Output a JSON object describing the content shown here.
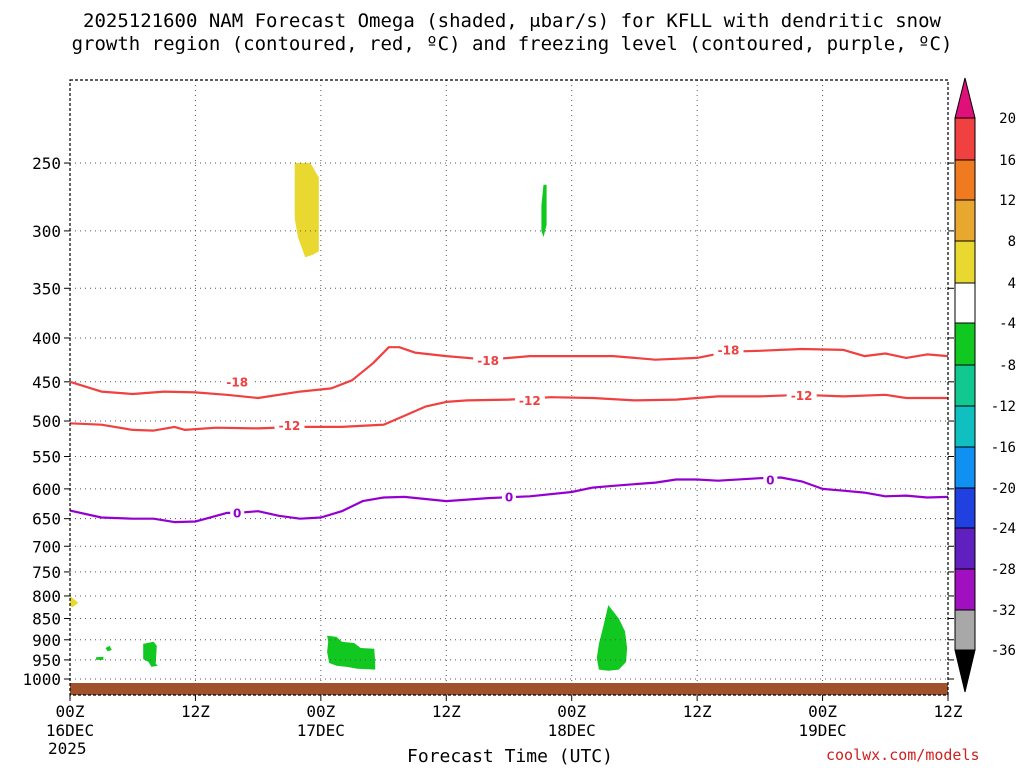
{
  "chart_data": {
    "type": "time-height cross section (shaded + contours)",
    "title_line1": "2025121600 NAM Forecast Omega (shaded, μbar/s) for KFLL with dendritic snow",
    "title_line2": "growth region (contoured, red, ºC) and freezing level (contoured, purple, ºC)",
    "xlabel": "Forecast Time (UTC)",
    "credit": "coolwx.com/models",
    "x_range_hours": [
      0,
      84
    ],
    "y_range_hpa": [
      1000,
      200
    ],
    "x_ticks": [
      {
        "hour": 0,
        "label": "00Z",
        "sub": "16DEC",
        "sub2": "2025"
      },
      {
        "hour": 12,
        "label": "12Z"
      },
      {
        "hour": 24,
        "label": "00Z",
        "sub": "17DEC"
      },
      {
        "hour": 36,
        "label": "12Z"
      },
      {
        "hour": 48,
        "label": "00Z",
        "sub": "18DEC"
      },
      {
        "hour": 60,
        "label": "12Z"
      },
      {
        "hour": 72,
        "label": "00Z",
        "sub": "19DEC"
      },
      {
        "hour": 84,
        "label": "12Z"
      }
    ],
    "y_ticks": [
      250,
      300,
      350,
      400,
      450,
      500,
      550,
      600,
      650,
      700,
      750,
      800,
      850,
      900,
      950,
      1000
    ],
    "colorbar": {
      "labels": [
        "20",
        "16",
        "12",
        "8",
        "4",
        "-4",
        "-8",
        "-12",
        "-16",
        "-20",
        "-24",
        "-28",
        "-32",
        "-36"
      ],
      "colors": [
        "#e8b4d0",
        "#f04040",
        "#f07a20",
        "#e8a830",
        "#e8d830",
        "#ffffff",
        "#10c820",
        "#10c890",
        "#10c0c0",
        "#1090f0",
        "#2040e0",
        "#6020c0",
        "#a010c0",
        "#a8a8a8"
      ],
      "top_arrow_color": "#e0107a",
      "bottom_arrow_color": "#000000"
    },
    "contours": [
      {
        "name": "-18C",
        "color": "#f04040",
        "label": "-18",
        "label_points": [
          [
            16,
            450
          ],
          [
            40,
            425
          ],
          [
            63,
            413
          ]
        ],
        "points": [
          [
            0,
            450
          ],
          [
            3,
            462
          ],
          [
            6,
            465
          ],
          [
            9,
            462
          ],
          [
            12,
            463
          ],
          [
            15,
            466
          ],
          [
            18,
            470
          ],
          [
            22,
            462
          ],
          [
            25,
            458
          ],
          [
            27,
            448
          ],
          [
            29,
            428
          ],
          [
            30.5,
            410
          ],
          [
            31.5,
            410
          ],
          [
            33,
            416
          ],
          [
            36,
            420
          ],
          [
            40,
            424
          ],
          [
            44,
            420
          ],
          [
            48,
            420
          ],
          [
            52,
            420
          ],
          [
            56,
            424
          ],
          [
            60,
            422
          ],
          [
            63,
            415
          ],
          [
            66,
            414
          ],
          [
            70,
            412
          ],
          [
            74,
            413
          ],
          [
            76,
            420
          ],
          [
            78,
            417
          ],
          [
            80,
            422
          ],
          [
            82,
            418
          ],
          [
            84,
            420
          ]
        ]
      },
      {
        "name": "-12C",
        "color": "#f04040",
        "label": "-12",
        "label_points": [
          [
            21,
            506
          ],
          [
            44,
            473
          ],
          [
            70,
            467
          ]
        ],
        "points": [
          [
            0,
            503
          ],
          [
            3,
            505
          ],
          [
            6,
            512
          ],
          [
            8,
            513
          ],
          [
            10,
            508
          ],
          [
            11,
            512
          ],
          [
            14,
            509
          ],
          [
            18,
            510
          ],
          [
            22,
            508
          ],
          [
            26,
            508
          ],
          [
            30,
            505
          ],
          [
            32,
            493
          ],
          [
            34,
            481
          ],
          [
            36,
            475
          ],
          [
            38,
            473
          ],
          [
            42,
            472
          ],
          [
            46,
            469
          ],
          [
            50,
            470
          ],
          [
            54,
            473
          ],
          [
            58,
            472
          ],
          [
            62,
            468
          ],
          [
            66,
            468
          ],
          [
            70,
            466
          ],
          [
            74,
            468
          ],
          [
            78,
            466
          ],
          [
            80,
            470
          ],
          [
            82,
            470
          ],
          [
            84,
            470
          ]
        ]
      },
      {
        "name": "0C",
        "color": "#9400d0",
        "label": "0",
        "label_points": [
          [
            16,
            640
          ],
          [
            42,
            613
          ],
          [
            67,
            586
          ]
        ],
        "points": [
          [
            0,
            636
          ],
          [
            3,
            648
          ],
          [
            6,
            650
          ],
          [
            8,
            650
          ],
          [
            10,
            656
          ],
          [
            12,
            655
          ],
          [
            13,
            650
          ],
          [
            15,
            640
          ],
          [
            16,
            640
          ],
          [
            18,
            637
          ],
          [
            20,
            645
          ],
          [
            22,
            650
          ],
          [
            24,
            648
          ],
          [
            26,
            637
          ],
          [
            28,
            620
          ],
          [
            30,
            614
          ],
          [
            32,
            613
          ],
          [
            36,
            620
          ],
          [
            40,
            615
          ],
          [
            44,
            612
          ],
          [
            48,
            605
          ],
          [
            50,
            598
          ],
          [
            52,
            595
          ],
          [
            56,
            590
          ],
          [
            58,
            585
          ],
          [
            60,
            585
          ],
          [
            62,
            587
          ],
          [
            66,
            583
          ],
          [
            68,
            582
          ],
          [
            70,
            588
          ],
          [
            72,
            600
          ],
          [
            74,
            603
          ],
          [
            76,
            606
          ],
          [
            78,
            612
          ],
          [
            80,
            611
          ],
          [
            82,
            614
          ],
          [
            84,
            613
          ]
        ]
      }
    ],
    "shaded_regions": [
      {
        "name": "omega +4..8",
        "color": "#e8d830",
        "points": [
          [
            21.5,
            250
          ],
          [
            23,
            250
          ],
          [
            23.8,
            260
          ],
          [
            23.8,
            317
          ],
          [
            23.2,
            320
          ],
          [
            22.5,
            322
          ],
          [
            21.8,
            305
          ],
          [
            21.5,
            290
          ]
        ]
      },
      {
        "name": "omega -4..-8",
        "color": "#10c820",
        "points": [
          [
            45.3,
            265
          ],
          [
            45.6,
            265
          ],
          [
            45.6,
            295
          ],
          [
            45.3,
            305
          ],
          [
            45.1,
            300
          ],
          [
            45.1,
            280
          ]
        ]
      },
      {
        "name": "omega +4..8 edge",
        "color": "#e8d830",
        "points": [
          [
            0,
            800
          ],
          [
            0.8,
            815
          ],
          [
            0.2,
            825
          ],
          [
            0,
            820
          ]
        ]
      },
      {
        "name": "omega -4..-8",
        "color": "#10c820",
        "points": [
          [
            3.4,
            920
          ],
          [
            3.8,
            915
          ],
          [
            4,
            925
          ],
          [
            3.6,
            928
          ]
        ]
      },
      {
        "name": "omega -4..-8",
        "color": "#10c820",
        "points": [
          [
            2.5,
            943
          ],
          [
            3.2,
            942
          ],
          [
            3.2,
            950
          ],
          [
            2.5,
            950
          ]
        ]
      },
      {
        "name": "omega -4..-8",
        "color": "#10c820",
        "points": [
          [
            7,
            910
          ],
          [
            8,
            905
          ],
          [
            8.3,
            915
          ],
          [
            8.2,
            960
          ],
          [
            8.4,
            965
          ],
          [
            7.8,
            968
          ],
          [
            7.5,
            955
          ],
          [
            7,
            948
          ]
        ]
      },
      {
        "name": "omega -4..-8",
        "color": "#10c820",
        "points": [
          [
            24.6,
            890
          ],
          [
            25.5,
            893
          ],
          [
            26,
            905
          ],
          [
            27.2,
            908
          ],
          [
            27.8,
            920
          ],
          [
            29.1,
            922
          ],
          [
            29.2,
            955
          ],
          [
            29.2,
            975
          ],
          [
            27.5,
            973
          ],
          [
            26.5,
            968
          ],
          [
            25.5,
            965
          ],
          [
            24.8,
            958
          ],
          [
            24.6,
            930
          ],
          [
            24.7,
            905
          ]
        ]
      },
      {
        "name": "omega -4..-8",
        "color": "#10c820",
        "points": [
          [
            51.5,
            820
          ],
          [
            52.5,
            850
          ],
          [
            53.1,
            880
          ],
          [
            53.3,
            920
          ],
          [
            53.2,
            955
          ],
          [
            52.5,
            975
          ],
          [
            51.5,
            978
          ],
          [
            50.6,
            975
          ],
          [
            50.4,
            945
          ],
          [
            50.6,
            910
          ],
          [
            51,
            870
          ]
        ]
      }
    ],
    "ground_band": {
      "color": "#a0522d",
      "pressure_top": 1000
    }
  }
}
